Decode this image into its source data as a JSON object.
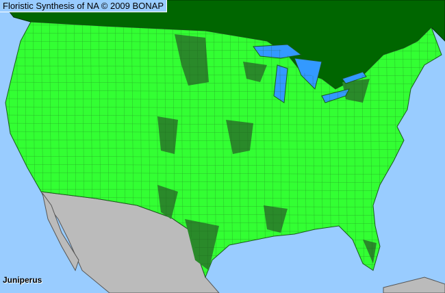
{
  "header": {
    "title": "Floristic Synthesis of NA © 2009 BONAP"
  },
  "map": {
    "taxon": "Juniperus",
    "colors": {
      "ocean": "#99ccff",
      "canada": "#006600",
      "us_present": "#33ff33",
      "us_dark": "#2a8a2a",
      "mexico": "#bbbbbb",
      "lakes": "#3399ff",
      "county_lines": "#1a5a1a"
    }
  }
}
